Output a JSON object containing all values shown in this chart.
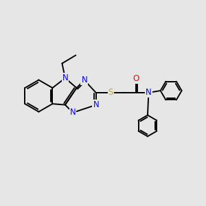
{
  "background_color": "#e6e6e6",
  "atom_colors": {
    "N": "#0000ff",
    "S": "#ccaa00",
    "O": "#ff0000",
    "C": "#000000"
  },
  "bond_color": "#000000",
  "bond_width": 1.4,
  "font_size_atom": 8.5
}
